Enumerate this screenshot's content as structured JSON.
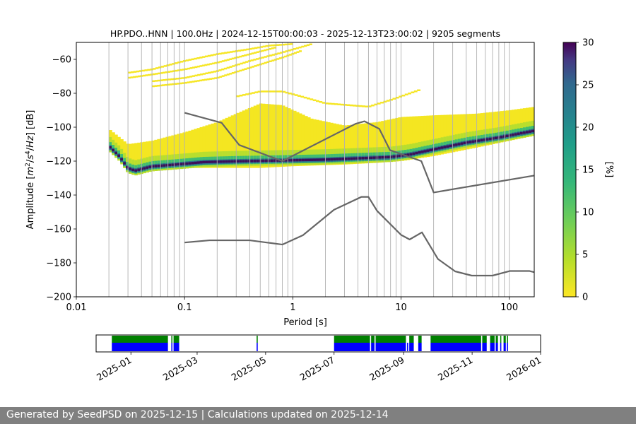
{
  "footer": {
    "text": "Generated by SeedPSD on 2025-12-15 | Calculations updated on 2025-12-14"
  },
  "chart_data": [
    {
      "type": "heatmap",
      "title": "HP.PDO..HNN | 100.0Hz | 2024-12-15T00:00:03 - 2025-12-13T23:00:02 | 9205 segments",
      "xlabel": "Period [s]",
      "ylabel_parts": [
        "Amplitude [",
        "m",
        "2",
        "/",
        "s",
        "4",
        "/",
        "Hz",
        "] [dB]"
      ],
      "x_scale": "log",
      "xlim": [
        0.01,
        170
      ],
      "ylim": [
        -200,
        -50
      ],
      "x_ticks": [
        0.01,
        0.1,
        1,
        10,
        100
      ],
      "x_tick_labels": [
        "0.01",
        "0.1",
        "1",
        "10",
        "100"
      ],
      "y_ticks": [
        -200,
        -180,
        -160,
        -140,
        -120,
        -100,
        -80,
        -60
      ],
      "y_tick_labels": [
        "−200",
        "−180",
        "−160",
        "−140",
        "−120",
        "−100",
        "−80",
        "−60"
      ],
      "grid_periods": [
        0.02,
        0.03,
        0.04,
        0.05,
        0.06,
        0.07,
        0.08,
        0.09,
        0.2,
        0.3,
        0.4,
        0.5,
        0.6,
        0.7,
        0.8,
        0.9,
        2,
        3,
        4,
        5,
        6,
        7,
        8,
        9,
        20,
        30,
        40,
        50,
        60,
        70,
        80,
        90
      ],
      "colorbar": {
        "label": "[%]",
        "min": 0,
        "max": 30,
        "ticks": [
          0,
          5,
          10,
          15,
          20,
          25,
          30
        ],
        "colormap": "viridis"
      },
      "psd_mode": [
        [
          0.02,
          -111
        ],
        [
          0.025,
          -117
        ],
        [
          0.03,
          -124
        ],
        [
          0.035,
          -125.5
        ],
        [
          0.05,
          -123
        ],
        [
          0.08,
          -122
        ],
        [
          0.15,
          -120.5
        ],
        [
          0.3,
          -120
        ],
        [
          0.8,
          -119.5
        ],
        [
          2,
          -119
        ],
        [
          5,
          -118
        ],
        [
          8,
          -117.5
        ],
        [
          12,
          -116
        ],
        [
          20,
          -113
        ],
        [
          40,
          -109
        ],
        [
          80,
          -106
        ],
        [
          170,
          -102
        ]
      ],
      "psd_spread_upper": [
        [
          0.02,
          -101
        ],
        [
          0.025,
          -106
        ],
        [
          0.03,
          -110
        ],
        [
          0.05,
          -108
        ],
        [
          0.1,
          -103
        ],
        [
          0.2,
          -97
        ],
        [
          0.3,
          -92
        ],
        [
          0.5,
          -86
        ],
        [
          0.8,
          -87
        ],
        [
          1.5,
          -95
        ],
        [
          3,
          -99
        ],
        [
          6,
          -97
        ],
        [
          10,
          -94
        ],
        [
          20,
          -93
        ],
        [
          50,
          -92
        ],
        [
          100,
          -90
        ],
        [
          170,
          -88
        ]
      ],
      "psd_spread_lower": [
        [
          0.02,
          -109
        ],
        [
          0.03,
          -127
        ],
        [
          0.05,
          -126
        ],
        [
          0.1,
          -124
        ],
        [
          0.5,
          -124
        ],
        [
          1,
          -123
        ],
        [
          3,
          -122
        ],
        [
          6,
          -121
        ],
        [
          10,
          -120
        ],
        [
          20,
          -117
        ],
        [
          50,
          -112
        ],
        [
          100,
          -108
        ],
        [
          170,
          -105
        ]
      ],
      "psd_harmonic_bands": [
        [
          [
            0.03,
            -68
          ],
          [
            0.05,
            -66
          ],
          [
            0.1,
            -61
          ],
          [
            0.2,
            -57
          ],
          [
            0.4,
            -54
          ],
          [
            0.6,
            -52
          ],
          [
            1,
            -51
          ]
        ],
        [
          [
            0.03,
            -71
          ],
          [
            0.05,
            -69
          ],
          [
            0.1,
            -66
          ],
          [
            0.2,
            -62
          ],
          [
            0.4,
            -57
          ],
          [
            0.7,
            -53
          ]
        ],
        [
          [
            0.05,
            -73
          ],
          [
            0.1,
            -71
          ],
          [
            0.2,
            -67
          ],
          [
            0.4,
            -61
          ],
          [
            0.8,
            -56
          ],
          [
            1.5,
            -51
          ]
        ],
        [
          [
            0.05,
            -76
          ],
          [
            0.1,
            -74
          ],
          [
            0.2,
            -71
          ],
          [
            0.4,
            -65
          ],
          [
            0.8,
            -59
          ],
          [
            1.2,
            -55
          ]
        ],
        [
          [
            0.3,
            -82
          ],
          [
            0.5,
            -79
          ],
          [
            0.8,
            -79
          ],
          [
            1.2,
            -82
          ],
          [
            2,
            -86
          ],
          [
            5,
            -88
          ],
          [
            8,
            -84
          ],
          [
            15,
            -78
          ]
        ]
      ],
      "reference_curves": [
        {
          "points": [
            [
              0.1,
              -91.5
            ],
            [
              0.22,
              -97.4
            ],
            [
              0.32,
              -110.5
            ],
            [
              0.8,
              -120
            ],
            [
              3.8,
              -98
            ],
            [
              4.6,
              -96.5
            ],
            [
              6.3,
              -101
            ],
            [
              7.9,
              -113.5
            ],
            [
              15.4,
              -120
            ],
            [
              20,
              -138.5
            ],
            [
              170,
              -128.5
            ]
          ]
        },
        {
          "points": [
            [
              0.1,
              -168
            ],
            [
              0.17,
              -166.7
            ],
            [
              0.4,
              -166.7
            ],
            [
              0.8,
              -169.2
            ],
            [
              1.24,
              -163.7
            ],
            [
              2.4,
              -148.7
            ],
            [
              4.3,
              -141.1
            ],
            [
              5.0,
              -141.1
            ],
            [
              6.0,
              -149.3
            ],
            [
              10,
              -163.5
            ],
            [
              12,
              -166.2
            ],
            [
              15.6,
              -162
            ],
            [
              21.9,
              -177.7
            ],
            [
              31.6,
              -185
            ],
            [
              45,
              -187.5
            ],
            [
              70,
              -187.5
            ],
            [
              101,
              -184.8
            ],
            [
              154,
              -184.8
            ],
            [
              170,
              -185.5
            ]
          ]
        }
      ]
    },
    {
      "type": "timeline",
      "x_tick_labels": [
        "2025-01",
        "2025-03",
        "2025-05",
        "2025-07",
        "2025-09",
        "2025-11",
        "2026-01"
      ],
      "x_ticks": [
        "2025-01-01",
        "2025-03-01",
        "2025-05-01",
        "2025-07-01",
        "2025-09-01",
        "2025-11-01",
        "2026-01-01"
      ],
      "xlim": [
        "2024-12-01",
        "2026-01-01"
      ],
      "colors": {
        "upper_band": "#008000",
        "lower_band": "#0000ff"
      },
      "coverage": [
        [
          "2024-12-15",
          "2025-02-03"
        ],
        [
          "2025-02-06",
          "2025-02-07"
        ],
        [
          "2025-02-08",
          "2025-02-13"
        ],
        [
          "2025-04-23",
          "2025-04-24"
        ],
        [
          "2025-07-01",
          "2025-08-02"
        ],
        [
          "2025-08-03",
          "2025-08-06"
        ],
        [
          "2025-08-07",
          "2025-09-03"
        ],
        [
          "2025-09-06",
          "2025-09-10"
        ],
        [
          "2025-09-14",
          "2025-09-17"
        ],
        [
          "2025-09-25",
          "2025-11-09"
        ],
        [
          "2025-11-10",
          "2025-11-14"
        ],
        [
          "2025-11-17",
          "2025-11-21"
        ],
        [
          "2025-11-22",
          "2025-11-24"
        ],
        [
          "2025-11-26",
          "2025-11-27"
        ],
        [
          "2025-11-29",
          "2025-12-01"
        ],
        [
          "2025-12-02",
          "2025-12-03"
        ]
      ],
      "lower_only": [
        [
          "2025-09-04",
          "2025-09-05"
        ]
      ]
    }
  ]
}
